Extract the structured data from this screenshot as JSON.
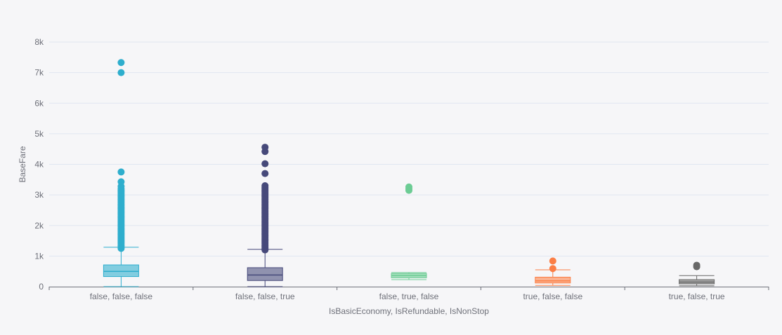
{
  "chart_data": {
    "type": "boxplot",
    "xlabel": "IsBasicEconomy, IsRefundable, IsNonStop",
    "ylabel": "BaseFare",
    "ylim": [
      0,
      8000
    ],
    "y_ticks": [
      {
        "value": 0,
        "label": "0"
      },
      {
        "value": 1000,
        "label": "1k"
      },
      {
        "value": 2000,
        "label": "2k"
      },
      {
        "value": 3000,
        "label": "3k"
      },
      {
        "value": 4000,
        "label": "4k"
      },
      {
        "value": 5000,
        "label": "5k"
      },
      {
        "value": 6000,
        "label": "6k"
      },
      {
        "value": 7000,
        "label": "7k"
      },
      {
        "value": 8000,
        "label": "8k"
      }
    ],
    "grid": true,
    "categories": [
      "false, false, false",
      "false, false, true",
      "false, true, false",
      "true, false, false",
      "true, false, true"
    ],
    "series": [
      {
        "color": "#2eaecd",
        "min": 0,
        "q1": 330,
        "median": 500,
        "q3": 710,
        "max": 1290,
        "outliers": [
          1250,
          1300,
          1350,
          1400,
          1450,
          1500,
          1550,
          1600,
          1650,
          1700,
          1750,
          1800,
          1850,
          1900,
          1950,
          2000,
          2050,
          2100,
          2150,
          2200,
          2250,
          2300,
          2350,
          2400,
          2450,
          2500,
          2550,
          2600,
          2650,
          2700,
          2750,
          2800,
          2850,
          2900,
          2950,
          3000,
          3050,
          3100,
          3150,
          3200,
          3280,
          3430,
          3750,
          7000,
          7330
        ]
      },
      {
        "color": "#46497a",
        "min": 0,
        "q1": 200,
        "median": 380,
        "q3": 620,
        "max": 1220,
        "outliers": [
          1200,
          1250,
          1300,
          1350,
          1400,
          1450,
          1500,
          1550,
          1600,
          1650,
          1700,
          1750,
          1800,
          1850,
          1900,
          1950,
          2000,
          2050,
          2100,
          2150,
          2200,
          2250,
          2300,
          2350,
          2400,
          2450,
          2500,
          2550,
          2600,
          2650,
          2700,
          2750,
          2800,
          2850,
          2900,
          2950,
          3000,
          3050,
          3100,
          3150,
          3200,
          3250,
          3300,
          3700,
          4020,
          4420,
          4560
        ]
      },
      {
        "color": "#6ccc94",
        "min": 230,
        "q1": 290,
        "median": 360,
        "q3": 430,
        "max": 460,
        "outliers": [
          3150,
          3200,
          3260
        ]
      },
      {
        "color": "#fb7e45",
        "min": 40,
        "q1": 120,
        "median": 190,
        "q3": 310,
        "max": 550,
        "outliers": [
          590,
          840
        ]
      },
      {
        "color": "#686868",
        "min": 30,
        "q1": 90,
        "median": 150,
        "q3": 230,
        "max": 360,
        "outliers": [
          650,
          700
        ]
      }
    ]
  }
}
